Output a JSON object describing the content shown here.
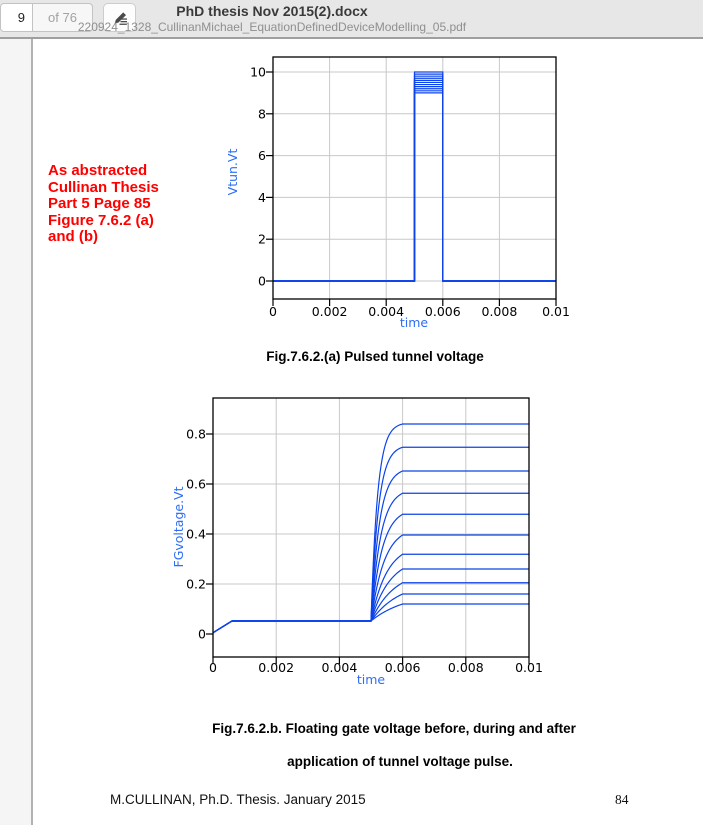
{
  "toolbar": {
    "page_number": "9",
    "page_count_label": "of 76",
    "title": "PhD thesis Nov 2015(2).docx",
    "subtitle": "220924_1328_CullinanMichael_EquationDefinedDeviceModelling_05.pdf"
  },
  "annotation": {
    "lines": [
      "As abstracted",
      "Cullinan Thesis",
      "Part 5 Page 85",
      "Figure 7.6.2 (a)",
      "and (b)"
    ],
    "color": "#ff0000"
  },
  "captions": {
    "fig_a": "Fig.7.6.2.(a) Pulsed tunnel voltage",
    "fig_b_line1": "Fig.7.6.2.b. Floating gate voltage before, during and after",
    "fig_b_line2": "application of tunnel voltage pulse."
  },
  "footer": {
    "left": "M.CULLINAN, Ph.D. Thesis. January 2015",
    "page": "84"
  },
  "colors": {
    "curve": "#0c43ea",
    "axis_label": "#2e6ef5",
    "grid": "#c8c8c8",
    "border": "#000000",
    "tick_text": "#000000"
  },
  "chart_data": [
    {
      "type": "line",
      "title": "",
      "xlabel": "time",
      "ylabel": "Vtun.Vt",
      "xlim": [
        0,
        0.01
      ],
      "ylim": [
        -0.9,
        10.7
      ],
      "xticks": [
        0,
        0.002,
        0.004,
        0.006,
        0.008,
        0.01
      ],
      "xtick_labels": [
        "0",
        "0.002",
        "0.004",
        "0.006",
        "0.008",
        "0.01"
      ],
      "yticks": [
        0,
        2,
        4,
        6,
        8,
        10
      ],
      "ytick_labels": [
        "0",
        "2",
        "4",
        "6",
        "8",
        "10"
      ],
      "grid_x": [
        0.002,
        0.004,
        0.006,
        0.008
      ],
      "grid_y": [
        0,
        2,
        4,
        6,
        8,
        10
      ],
      "grid": true,
      "legend": "none",
      "pulse": {
        "baseline": 0,
        "t_start": 0.005,
        "t_end": 0.006,
        "amplitudes": [
          9,
          9.1,
          9.2,
          9.3,
          9.4,
          9.5,
          9.6,
          9.7,
          9.8,
          9.9,
          10
        ]
      }
    },
    {
      "type": "line",
      "title": "",
      "xlabel": "time",
      "ylabel": "FGvoltage.Vt",
      "xlim": [
        0,
        0.01
      ],
      "ylim": [
        -0.09,
        0.94
      ],
      "xticks": [
        0,
        0.002,
        0.004,
        0.006,
        0.008,
        0.01
      ],
      "xtick_labels": [
        "0",
        "0.002",
        "0.004",
        "0.006",
        "0.008",
        "0.01"
      ],
      "yticks": [
        0,
        0.2,
        0.4,
        0.6,
        0.8
      ],
      "ytick_labels": [
        "0",
        "0.2",
        "0.4",
        "0.6",
        "0.8"
      ],
      "grid_x": [
        0.002,
        0.004,
        0.006,
        0.008
      ],
      "grid_y": [
        0.2,
        0.4,
        0.6,
        0.8
      ],
      "grid": true,
      "legend": "none",
      "initial_level": 0.052,
      "ramp_end_t": 0.0006,
      "rise_start_t": 0.005,
      "rise_end_t": 0.006,
      "series": [
        {
          "final": 0.84
        },
        {
          "final": 0.747
        },
        {
          "final": 0.652
        },
        {
          "final": 0.563
        },
        {
          "final": 0.479
        },
        {
          "final": 0.396
        },
        {
          "final": 0.319
        },
        {
          "final": 0.26
        },
        {
          "final": 0.205
        },
        {
          "final": 0.16
        },
        {
          "final": 0.12
        }
      ]
    }
  ]
}
